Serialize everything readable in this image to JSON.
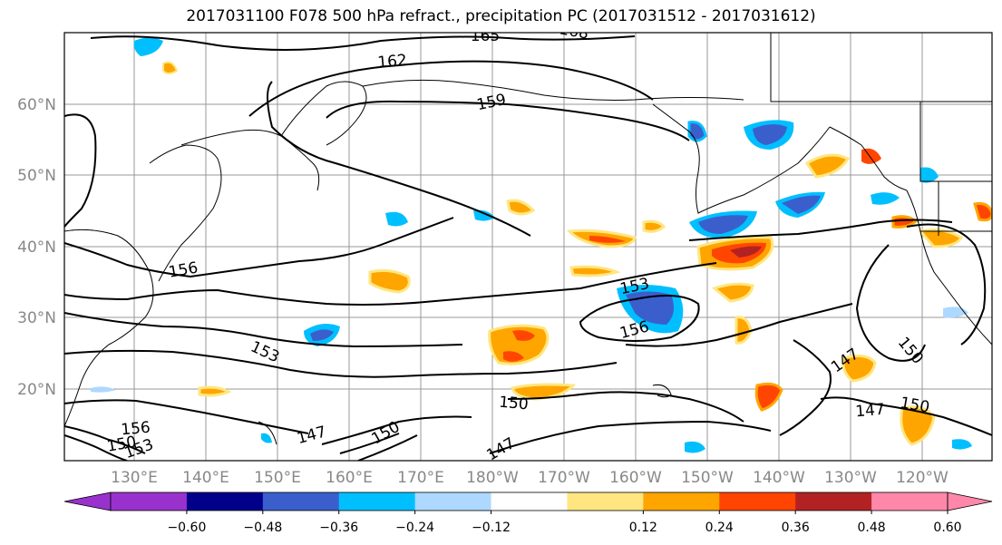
{
  "title": "2017031100 F078 500 hPa refract., precipitation PC (2017031512 - 2017031612)",
  "lat_labels": [
    "60°N",
    "50°N",
    "40°N",
    "30°N",
    "20°N"
  ],
  "lon_labels": [
    "130°E",
    "140°E",
    "150°E",
    "160°E",
    "170°E",
    "180°W",
    "170°W",
    "160°W",
    "150°W",
    "140°W",
    "130°W",
    "120°W"
  ],
  "contour_labels": [
    "165",
    "168",
    "162",
    "159",
    "156",
    "153",
    "156",
    "153",
    "150",
    "147",
    "150",
    "150",
    "147",
    "156",
    "150",
    "147",
    "150",
    "147",
    "153"
  ],
  "colorbar": {
    "ticks": [
      "−0.60",
      "−0.48",
      "−0.36",
      "−0.24",
      "−0.12",
      "0.12",
      "0.24",
      "0.36",
      "0.48",
      "0.60"
    ],
    "colors": [
      "#9932cc",
      "#00008b",
      "#3a5fcd",
      "#00bfff",
      "#add8ff",
      "#ffffff",
      "#ffe680",
      "#ffa500",
      "#ff4500",
      "#b22222",
      "#ff88aa",
      "#ff88aa"
    ]
  }
}
